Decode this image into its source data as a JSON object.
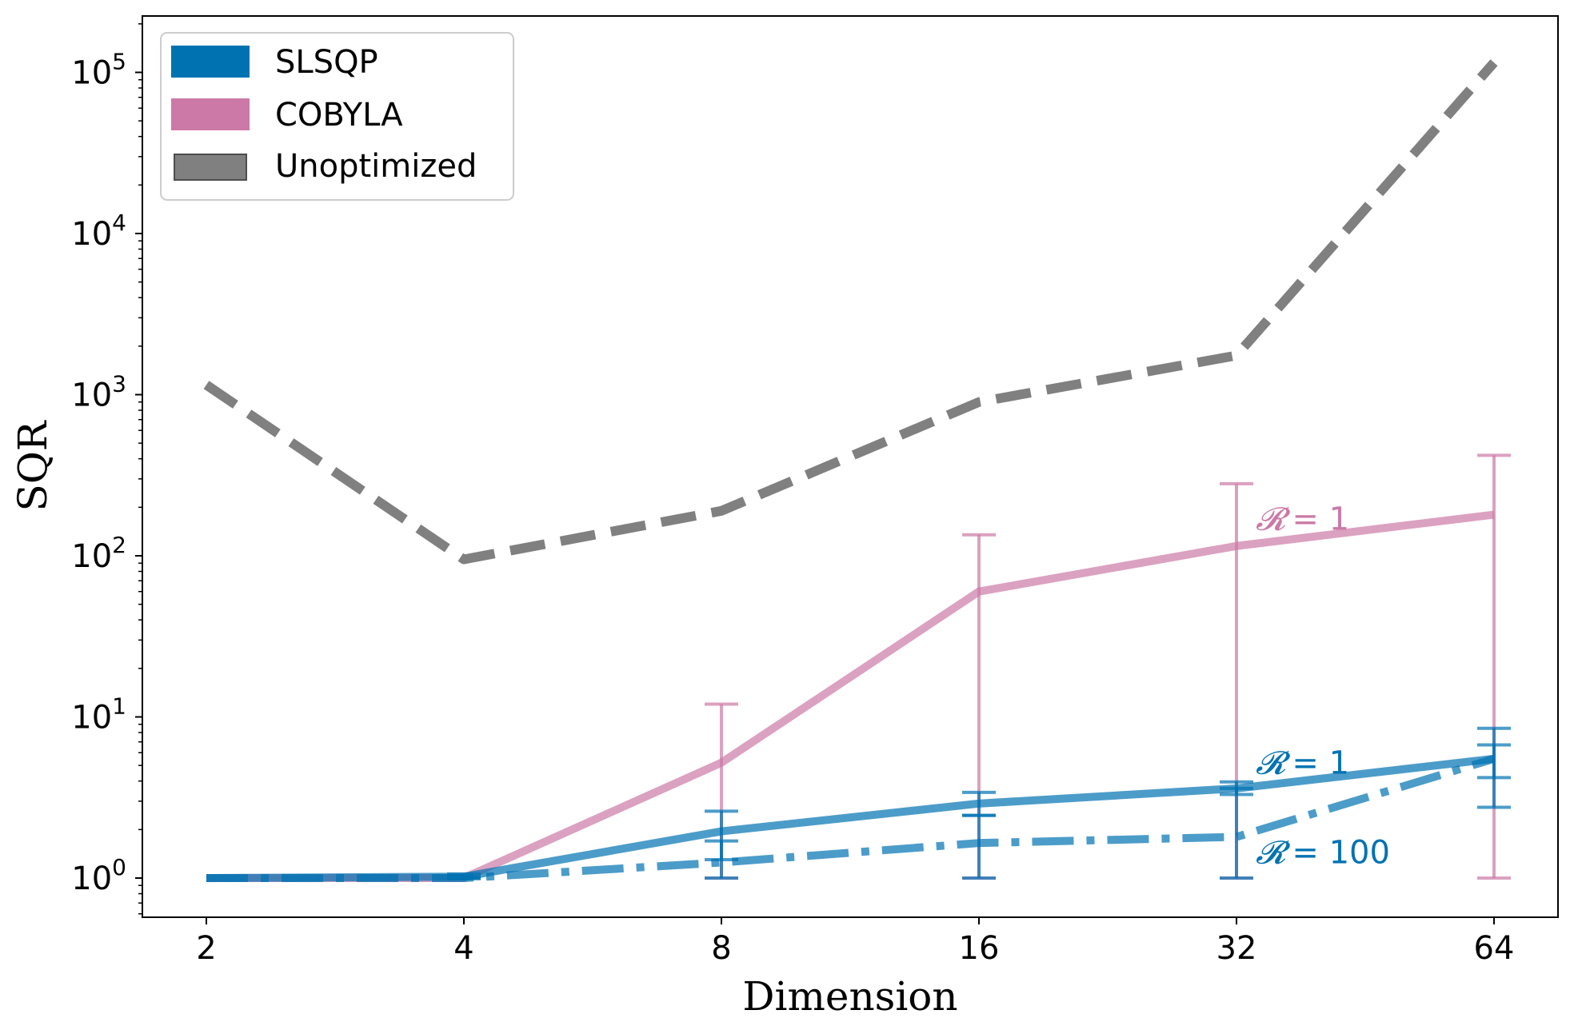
{
  "chart_data": {
    "type": "line",
    "title": "",
    "xlabel": "Dimension",
    "ylabel": "SQR",
    "yscale": "log",
    "ylim": [
      0.55,
      200000
    ],
    "x": [
      2,
      4,
      8,
      16,
      32,
      64
    ],
    "x_tick_labels": [
      "2",
      "4",
      "8",
      "16",
      "32",
      "64"
    ],
    "y_ticks": [
      {
        "value": 1,
        "base": "10",
        "exp": "0"
      },
      {
        "value": 10,
        "base": "10",
        "exp": "1"
      },
      {
        "value": 100,
        "base": "10",
        "exp": "2"
      },
      {
        "value": 1000,
        "base": "10",
        "exp": "3"
      },
      {
        "value": 10000,
        "base": "10",
        "exp": "4"
      },
      {
        "value": 100000,
        "base": "10",
        "exp": "5"
      }
    ],
    "legend": {
      "position": "top-left",
      "entries": [
        {
          "label": "SLSQP",
          "color": "#0072B2"
        },
        {
          "label": "COBYLA",
          "color": "#CC79A7"
        },
        {
          "label": "Unoptimized",
          "color": "#808080"
        }
      ]
    },
    "series": [
      {
        "name": "Unoptimized",
        "color": "#808080",
        "style": "dashed",
        "values": [
          1150,
          95,
          190,
          900,
          1750,
          115000
        ]
      },
      {
        "name": "COBYLA R=1",
        "color": "#CC79A7",
        "style": "solid",
        "values": [
          1.0,
          1.0,
          5.2,
          60,
          115,
          180
        ],
        "error_low": [
          1.0,
          1.0,
          1.0,
          1.0,
          1.0,
          1.0
        ],
        "error_high": [
          1.0,
          1.0,
          12,
          135,
          280,
          420
        ]
      },
      {
        "name": "SLSQP R=1",
        "color": "#0072B2",
        "style": "solid",
        "values": [
          1.0,
          1.02,
          1.95,
          2.9,
          3.6,
          5.5
        ],
        "error_low": [
          1.0,
          0.99,
          1.3,
          2.45,
          3.3,
          4.2
        ],
        "error_high": [
          1.0,
          1.06,
          2.6,
          3.4,
          3.95,
          8.5
        ]
      },
      {
        "name": "SLSQP R=100",
        "color": "#0072B2",
        "style": "dashdot",
        "values": [
          1.0,
          1.0,
          1.25,
          1.65,
          1.8,
          5.5
        ],
        "error_low": [
          1.0,
          1.0,
          1.0,
          1.0,
          1.0,
          2.75
        ],
        "error_high": [
          1.0,
          1.02,
          1.7,
          2.45,
          3.6,
          6.7
        ]
      }
    ],
    "annotations": [
      {
        "symbol": "𝓡",
        "text": "= 1",
        "color": "#CC79A7",
        "x": 32,
        "y": 170
      },
      {
        "symbol": "𝓡",
        "text": "= 1",
        "color": "#0072B2",
        "x": 32,
        "y": 5.2
      },
      {
        "symbol": "𝓡",
        "text": "= 100",
        "color": "#0072B2",
        "x": 32,
        "y": 1.45
      }
    ]
  }
}
